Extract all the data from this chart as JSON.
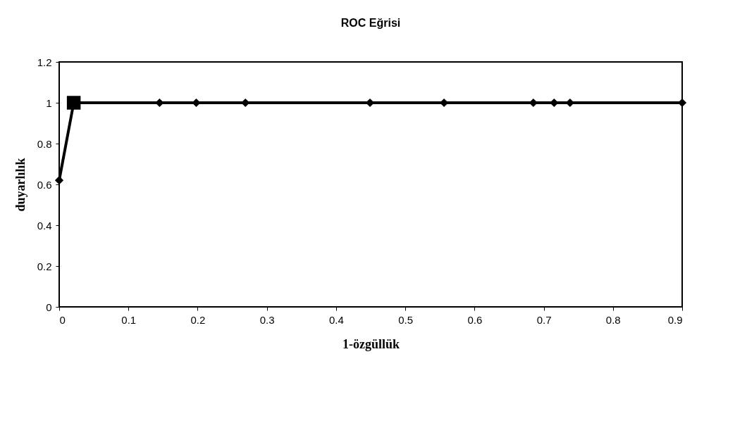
{
  "chart_data": {
    "type": "line",
    "title": "ROC Eğrisi",
    "xlabel": "1-özgüllük",
    "ylabel": "duyarlılık",
    "xlim": [
      0,
      0.9
    ],
    "xticks": [
      0,
      0.1,
      0.2,
      0.3,
      0.4,
      0.5,
      0.6,
      0.7,
      0.8,
      0.9
    ],
    "ylim": [
      0,
      1.2
    ],
    "yticks": [
      0,
      0.2,
      0.4,
      0.6,
      0.8,
      1,
      1.2
    ],
    "grid": false,
    "series": [
      {
        "color": "#000000",
        "marker": "diamond",
        "line_style": "solid",
        "x": [
          0,
          0.021,
          0.145,
          0.198,
          0.269,
          0.449,
          0.556,
          0.685,
          0.715,
          0.738,
          0.9
        ],
        "values": [
          0.62,
          1,
          1,
          1,
          1,
          1,
          1,
          1,
          1,
          1,
          1
        ]
      },
      {
        "type": "scatter",
        "color": "#000000",
        "marker": "square",
        "x": [
          0.021
        ],
        "values": [
          1
        ]
      }
    ]
  }
}
